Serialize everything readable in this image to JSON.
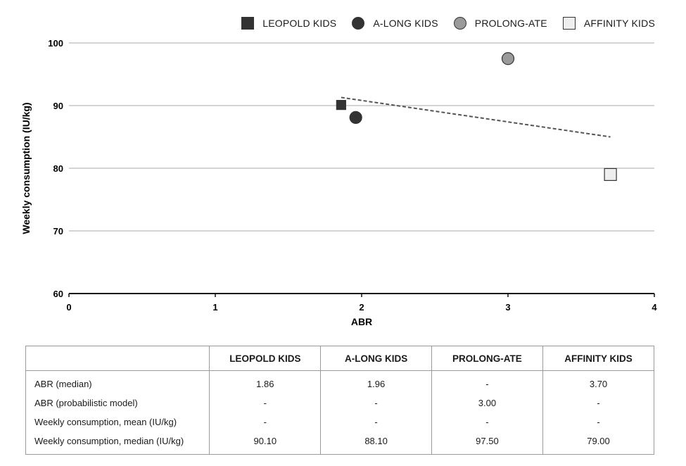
{
  "chart_data": {
    "type": "scatter",
    "xlabel": "ABR",
    "ylabel": "Weekly consumption (IU/kg)",
    "xlim": [
      0,
      4
    ],
    "ylim": [
      60,
      100
    ],
    "x_ticks": [
      "0",
      "1",
      "2",
      "3",
      "4"
    ],
    "y_ticks": [
      "60",
      "70",
      "80",
      "90",
      "100"
    ],
    "grid": "horizontal",
    "legend_position": "top-right",
    "series": [
      {
        "name": "LEOPOLD KIDS",
        "marker": "square",
        "color": "#333333",
        "x": [
          1.86
        ],
        "y": [
          90.1
        ]
      },
      {
        "name": "A-LONG KIDS",
        "marker": "circle",
        "color": "#333333",
        "x": [
          1.96
        ],
        "y": [
          88.1
        ]
      },
      {
        "name": "PROLONG-ATE",
        "marker": "circle",
        "color": "#9a9a9a",
        "x": [
          3.0
        ],
        "y": [
          97.5
        ]
      },
      {
        "name": "AFFINITY KIDS",
        "marker": "square",
        "color": "#eeeeee",
        "x": [
          3.7
        ],
        "y": [
          79.0
        ]
      }
    ],
    "trendline": {
      "style": "dashed",
      "color": "#555555",
      "x": [
        1.86,
        3.7
      ],
      "y": [
        91.3,
        85.0
      ]
    }
  },
  "table": {
    "columns": [
      "",
      "LEOPOLD KIDS",
      "A-LONG KIDS",
      "PROLONG-ATE",
      "AFFINITY KIDS"
    ],
    "rows": [
      {
        "label": "ABR (median)",
        "values": [
          "1.86",
          "1.96",
          "-",
          "3.70"
        ]
      },
      {
        "label": "ABR (probabilistic model)",
        "values": [
          "-",
          "-",
          "3.00",
          "-"
        ]
      },
      {
        "label": "Weekly consumption, mean (IU/kg)",
        "values": [
          "-",
          "-",
          "-",
          "-"
        ]
      },
      {
        "label": "Weekly consumption, median (IU/kg)",
        "values": [
          "90.10",
          "88.10",
          "97.50",
          "79.00"
        ]
      }
    ]
  }
}
